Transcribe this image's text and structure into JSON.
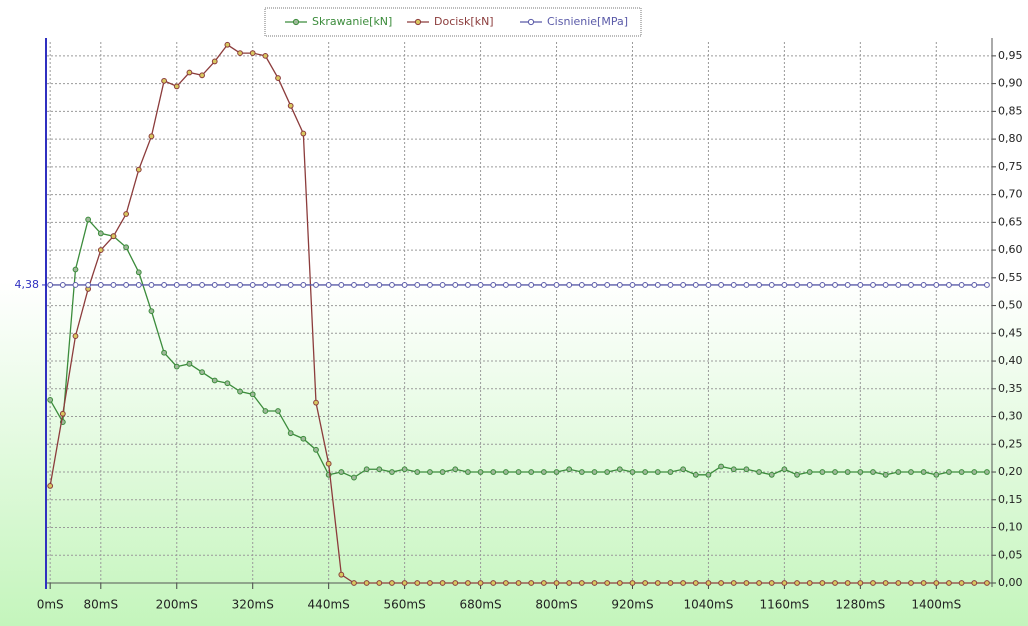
{
  "chart_data": {
    "type": "line",
    "x": [
      0,
      20,
      40,
      60,
      80,
      100,
      120,
      140,
      160,
      180,
      200,
      220,
      240,
      260,
      280,
      300,
      320,
      340,
      360,
      380,
      400,
      420,
      440,
      460,
      480,
      500,
      520,
      540,
      560,
      580,
      600,
      620,
      640,
      660,
      680,
      700,
      720,
      740,
      760,
      780,
      800,
      820,
      840,
      860,
      880,
      900,
      920,
      940,
      960,
      980,
      1000,
      1020,
      1040,
      1060,
      1080,
      1100,
      1120,
      1140,
      1160,
      1180,
      1200,
      1220,
      1240,
      1260,
      1280,
      1300,
      1320,
      1340,
      1360,
      1380,
      1400,
      1420,
      1440,
      1460,
      1480
    ],
    "series": [
      {
        "name": "Skrawanie[kN]",
        "color": "#3c8c3c",
        "marker_color": "#9fb89a",
        "axis": "y2",
        "values": [
          0.33,
          0.29,
          0.565,
          0.655,
          0.63,
          0.625,
          0.605,
          0.56,
          0.49,
          0.415,
          0.39,
          0.395,
          0.38,
          0.365,
          0.36,
          0.345,
          0.34,
          0.31,
          0.31,
          0.27,
          0.26,
          0.24,
          0.195,
          0.2,
          0.19,
          0.205,
          0.205,
          0.2,
          0.205,
          0.2,
          0.2,
          0.2,
          0.205,
          0.2,
          0.2,
          0.2,
          0.2,
          0.2,
          0.2,
          0.2,
          0.2,
          0.205,
          0.2,
          0.2,
          0.2,
          0.205,
          0.2,
          0.2,
          0.2,
          0.2,
          0.205,
          0.195,
          0.195,
          0.21,
          0.205,
          0.205,
          0.2,
          0.195,
          0.205,
          0.195,
          0.2,
          0.2,
          0.2,
          0.2,
          0.2,
          0.2,
          0.195,
          0.2,
          0.2,
          0.2,
          0.195,
          0.2,
          0.2,
          0.2,
          0.2
        ]
      },
      {
        "name": "Docisk[kN]",
        "color": "#8c3c3c",
        "marker_color": "#d8c860",
        "axis": "y2",
        "values": [
          0.175,
          0.305,
          0.445,
          0.53,
          0.6,
          0.625,
          0.665,
          0.745,
          0.805,
          0.905,
          0.895,
          0.92,
          0.915,
          0.94,
          0.97,
          0.955,
          0.955,
          0.95,
          0.91,
          0.86,
          0.81,
          0.325,
          0.215,
          0.015,
          0,
          0,
          0,
          0,
          0,
          0,
          0,
          0,
          0,
          0,
          0,
          0,
          0,
          0,
          0,
          0,
          0,
          0,
          0,
          0,
          0,
          0,
          0,
          0,
          0,
          0,
          0,
          0,
          0,
          0,
          0,
          0,
          0,
          0,
          0,
          0,
          0,
          0,
          0,
          0,
          0,
          0,
          0,
          0,
          0,
          0,
          0,
          0,
          0,
          0,
          0
        ]
      },
      {
        "name": "Cisnienie[MPa]",
        "color": "#5a5aa8",
        "marker_color": "#ffffff",
        "axis": "y",
        "values": [
          4.38,
          4.38,
          4.38,
          4.38,
          4.38,
          4.38,
          4.38,
          4.38,
          4.38,
          4.38,
          4.38,
          4.38,
          4.38,
          4.38,
          4.38,
          4.38,
          4.38,
          4.38,
          4.38,
          4.38,
          4.38,
          4.38,
          4.38,
          4.38,
          4.38,
          4.38,
          4.38,
          4.38,
          4.38,
          4.38,
          4.38,
          4.38,
          4.38,
          4.38,
          4.38,
          4.38,
          4.38,
          4.38,
          4.38,
          4.38,
          4.38,
          4.38,
          4.38,
          4.38,
          4.38,
          4.38,
          4.38,
          4.38,
          4.38,
          4.38,
          4.38,
          4.38,
          4.38,
          4.38,
          4.38,
          4.38,
          4.38,
          4.38,
          4.38,
          4.38,
          4.38,
          4.38,
          4.38,
          4.38,
          4.38,
          4.38,
          4.38,
          4.38,
          4.38,
          4.38,
          4.38,
          4.38,
          4.38,
          4.38,
          4.38
        ]
      }
    ],
    "xlim": [
      -5,
      1488
    ],
    "xticks": [
      {
        "value": 0,
        "label": "0mS"
      },
      {
        "value": 80,
        "label": "80mS"
      },
      {
        "value": 200,
        "label": "200mS"
      },
      {
        "value": 320,
        "label": "320mS"
      },
      {
        "value": 440,
        "label": "440mS"
      },
      {
        "value": 560,
        "label": "560mS"
      },
      {
        "value": 680,
        "label": "680mS"
      },
      {
        "value": 800,
        "label": "800mS"
      },
      {
        "value": 920,
        "label": "920mS"
      },
      {
        "value": 1040,
        "label": "1040mS"
      },
      {
        "value": 1160,
        "label": "1160mS"
      },
      {
        "value": 1280,
        "label": "1280mS"
      },
      {
        "value": 1400,
        "label": "1400mS"
      }
    ],
    "ylim": [
      0,
      7.95
    ],
    "yticks": [
      {
        "value": 4.38,
        "label": "4,38"
      }
    ],
    "y2lim": [
      0,
      0.975
    ],
    "y2ticks": [
      {
        "value": 0,
        "label": "0,00"
      },
      {
        "value": 0.05,
        "label": "0,05"
      },
      {
        "value": 0.1,
        "label": "0,10"
      },
      {
        "value": 0.15,
        "label": "0,15"
      },
      {
        "value": 0.2,
        "label": "0,20"
      },
      {
        "value": 0.25,
        "label": "0,25"
      },
      {
        "value": 0.3,
        "label": "0,30"
      },
      {
        "value": 0.35,
        "label": "0,35"
      },
      {
        "value": 0.4,
        "label": "0,40"
      },
      {
        "value": 0.45,
        "label": "0,45"
      },
      {
        "value": 0.5,
        "label": "0,50"
      },
      {
        "value": 0.55,
        "label": "0,55"
      },
      {
        "value": 0.6,
        "label": "0,60"
      },
      {
        "value": 0.65,
        "label": "0,65"
      },
      {
        "value": 0.7,
        "label": "0,70"
      },
      {
        "value": 0.75,
        "label": "0,75"
      },
      {
        "value": 0.8,
        "label": "0,80"
      },
      {
        "value": 0.85,
        "label": "0,85"
      },
      {
        "value": 0.9,
        "label": "0,90"
      },
      {
        "value": 0.95,
        "label": "0,95"
      }
    ],
    "grid": true,
    "legend": "top"
  }
}
